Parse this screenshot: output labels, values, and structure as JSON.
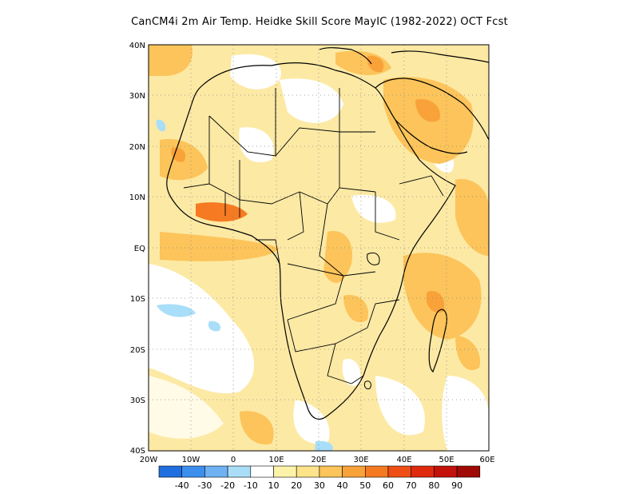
{
  "title": "CanCM4i 2m Air Temp. Heidke Skill Score MayIC (1982-2022) OCT Fcst",
  "lat_labels": [
    "40N",
    "30N",
    "20N",
    "10N",
    "EQ",
    "10S",
    "20S",
    "30S",
    "40S"
  ],
  "lon_labels": [
    "20W",
    "10W",
    "0",
    "10E",
    "20E",
    "30E",
    "40E",
    "50E",
    "60E"
  ],
  "colorbar": {
    "labels": [
      "-40",
      "-30",
      "-20",
      "-10",
      "10",
      "20",
      "30",
      "40",
      "50",
      "60",
      "70",
      "80",
      "90"
    ],
    "colors": [
      "#1f6fe0",
      "#3d8fee",
      "#6fb2f4",
      "#a9def8",
      "#ffffff",
      "#fdf3a8",
      "#fde38a",
      "#fcc45a",
      "#f9a23a",
      "#f57a22",
      "#ef4f16",
      "#df2a0e",
      "#c2120a",
      "#a00a06"
    ]
  },
  "chart_data": {
    "type": "heatmap",
    "title": "CanCM4i 2m Air Temp. Heidke Skill Score MayIC (1982-2022) OCT Fcst",
    "lon_range": [
      -20,
      60
    ],
    "lat_range": [
      -40,
      40
    ],
    "grid": "dotted"
  }
}
